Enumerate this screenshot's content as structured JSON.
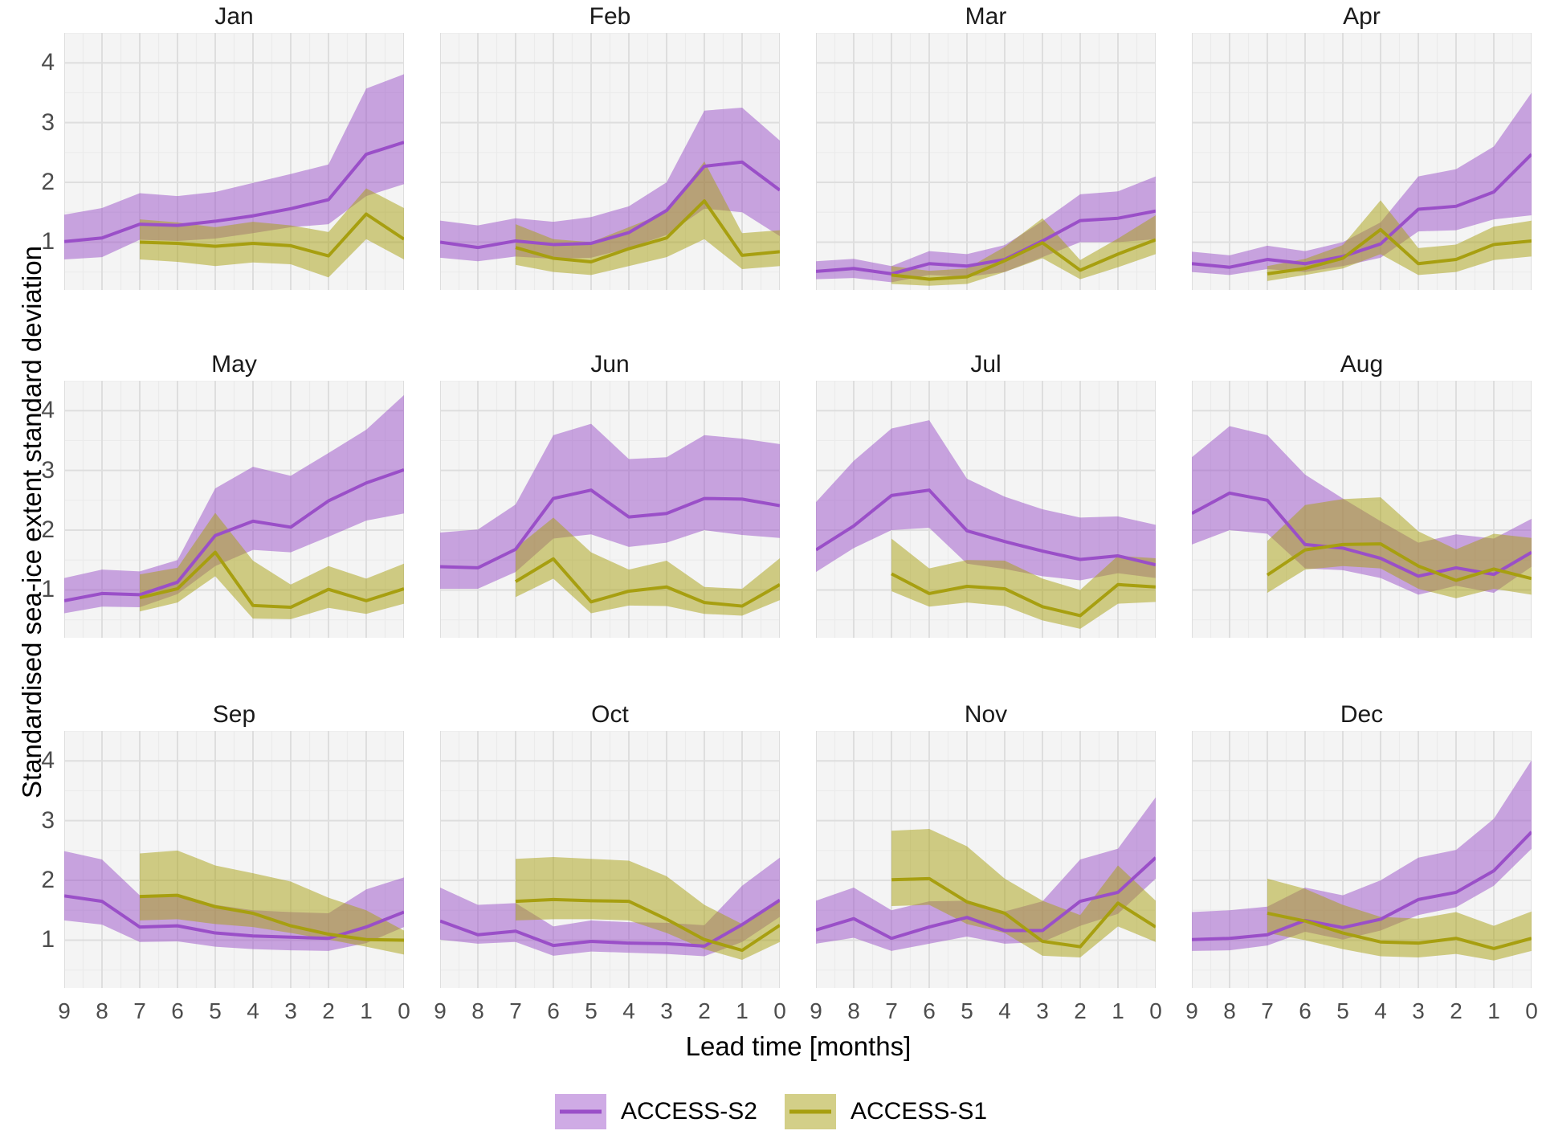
{
  "figure": {
    "y_axis_title": "Standardised sea-ice extent standard deviation",
    "x_axis_title": "Lead time [months]",
    "y_ticks": [
      "4",
      "3",
      "2",
      "1"
    ],
    "x_ticks": [
      "9",
      "8",
      "7",
      "6",
      "5",
      "4",
      "3",
      "2",
      "1",
      "0"
    ]
  },
  "legend": {
    "items": [
      {
        "label": "ACCESS-S2",
        "line_color": "#9a4fc8",
        "fill_color": "#cfabe5"
      },
      {
        "label": "ACCESS-S1",
        "line_color": "#a79f10",
        "fill_color": "#d3cf88"
      }
    ]
  },
  "colors": {
    "panel_bg": "#f4f4f4",
    "grid_major": "#dedede",
    "grid_minor": "#ebebeb",
    "s2_line": "#9a4fc8",
    "s2_ribbon": "rgba(154,79,200,0.5)",
    "s1_line": "#a79f10",
    "s1_ribbon": "rgba(167,159,16,0.5)",
    "tick_text": "#4d4d4d"
  },
  "chart_data": {
    "type": "line",
    "title": "",
    "xlabel": "Lead time [months]",
    "ylabel": "Standardised sea-ice extent standard deviation",
    "x": [
      9,
      8,
      7,
      6,
      5,
      4,
      3,
      2,
      1,
      0
    ],
    "x_s1": [
      7,
      6,
      5,
      4,
      3,
      2,
      1,
      0
    ],
    "ylim": [
      0.2,
      4.5
    ],
    "yticks": [
      1,
      2,
      3,
      4
    ],
    "grid": "major+minor",
    "legend_position": "bottom",
    "series_names": [
      "ACCESS-S2",
      "ACCESS-S1"
    ],
    "facets": [
      {
        "title": "Jan",
        "s2": {
          "mean": [
            1.01,
            1.07,
            1.3,
            1.28,
            1.35,
            1.44,
            1.56,
            1.71,
            2.47,
            2.67
          ],
          "lo": [
            0.71,
            0.75,
            1.04,
            1.02,
            1.06,
            1.15,
            1.25,
            1.3,
            1.77,
            1.97
          ],
          "hi": [
            1.46,
            1.57,
            1.82,
            1.77,
            1.84,
            1.99,
            2.14,
            2.3,
            3.57,
            3.81
          ]
        },
        "s1": {
          "mean": [
            1.0,
            0.98,
            0.93,
            0.98,
            0.94,
            0.77,
            1.47,
            1.05
          ],
          "lo": [
            0.71,
            0.67,
            0.6,
            0.66,
            0.63,
            0.41,
            1.05,
            0.71
          ],
          "hi": [
            1.38,
            1.33,
            1.25,
            1.34,
            1.28,
            1.17,
            1.9,
            1.57
          ]
        }
      },
      {
        "title": "Feb",
        "s2": {
          "mean": [
            1.0,
            0.91,
            1.02,
            0.96,
            0.98,
            1.16,
            1.53,
            2.27,
            2.34,
            1.87
          ],
          "lo": [
            0.74,
            0.68,
            0.76,
            0.72,
            0.74,
            0.9,
            1.12,
            1.56,
            1.5,
            1.1
          ],
          "hi": [
            1.36,
            1.28,
            1.4,
            1.34,
            1.42,
            1.6,
            2.0,
            3.2,
            3.25,
            2.7
          ]
        },
        "s1": {
          "mean": [
            0.91,
            0.73,
            0.67,
            0.89,
            1.07,
            1.69,
            0.78,
            0.84
          ],
          "lo": [
            0.62,
            0.5,
            0.45,
            0.6,
            0.75,
            1.05,
            0.55,
            0.6
          ],
          "hi": [
            1.3,
            1.05,
            1.0,
            1.25,
            1.5,
            2.35,
            1.15,
            1.2
          ]
        }
      },
      {
        "title": "Mar",
        "s2": {
          "mean": [
            0.51,
            0.56,
            0.47,
            0.64,
            0.6,
            0.71,
            1.02,
            1.36,
            1.4,
            1.52
          ],
          "lo": [
            0.38,
            0.4,
            0.33,
            0.45,
            0.42,
            0.5,
            0.75,
            1.0,
            1.0,
            1.05
          ],
          "hi": [
            0.68,
            0.72,
            0.6,
            0.85,
            0.8,
            0.95,
            1.35,
            1.8,
            1.85,
            2.1
          ]
        },
        "s1": {
          "mean": [
            0.45,
            0.38,
            0.42,
            0.69,
            0.99,
            0.53,
            0.8,
            1.04
          ],
          "lo": [
            0.3,
            0.27,
            0.3,
            0.5,
            0.73,
            0.38,
            0.58,
            0.8
          ],
          "hi": [
            0.6,
            0.52,
            0.56,
            0.92,
            1.4,
            0.7,
            1.06,
            1.45
          ]
        }
      },
      {
        "title": "Apr",
        "s2": {
          "mean": [
            0.64,
            0.58,
            0.71,
            0.64,
            0.76,
            0.97,
            1.55,
            1.6,
            1.84,
            2.47
          ],
          "lo": [
            0.5,
            0.45,
            0.55,
            0.5,
            0.6,
            0.74,
            1.18,
            1.2,
            1.38,
            1.45
          ],
          "hi": [
            0.84,
            0.78,
            0.94,
            0.85,
            1.0,
            1.33,
            2.1,
            2.22,
            2.6,
            3.5
          ]
        },
        "s1": {
          "mean": [
            0.47,
            0.56,
            0.73,
            1.21,
            0.64,
            0.71,
            0.96,
            1.02
          ],
          "lo": [
            0.35,
            0.45,
            0.56,
            0.8,
            0.45,
            0.5,
            0.7,
            0.76
          ],
          "hi": [
            0.6,
            0.72,
            0.95,
            1.7,
            0.9,
            0.96,
            1.26,
            1.36
          ]
        }
      },
      {
        "title": "May",
        "s2": {
          "mean": [
            0.82,
            0.94,
            0.92,
            1.13,
            1.91,
            2.15,
            2.05,
            2.49,
            2.79,
            3.01
          ],
          "lo": [
            0.61,
            0.72,
            0.71,
            0.93,
            1.4,
            1.67,
            1.63,
            1.89,
            2.16,
            2.28
          ],
          "hi": [
            1.2,
            1.34,
            1.31,
            1.5,
            2.7,
            3.06,
            2.91,
            3.29,
            3.68,
            4.26
          ]
        },
        "s1": {
          "mean": [
            0.87,
            1.02,
            1.63,
            0.74,
            0.71,
            1.01,
            0.82,
            1.02
          ],
          "lo": [
            0.64,
            0.79,
            1.23,
            0.52,
            0.51,
            0.7,
            0.6,
            0.77
          ],
          "hi": [
            1.26,
            1.37,
            2.29,
            1.49,
            1.09,
            1.4,
            1.19,
            1.44
          ]
        }
      },
      {
        "title": "Jun",
        "s2": {
          "mean": [
            1.39,
            1.37,
            1.68,
            2.53,
            2.67,
            2.22,
            2.28,
            2.53,
            2.52,
            2.41
          ],
          "lo": [
            1.02,
            1.02,
            1.3,
            1.86,
            1.93,
            1.72,
            1.79,
            2.0,
            1.92,
            1.87
          ],
          "hi": [
            1.96,
            2.01,
            2.43,
            3.59,
            3.78,
            3.19,
            3.22,
            3.59,
            3.53,
            3.44
          ]
        },
        "s1": {
          "mean": [
            1.14,
            1.52,
            0.8,
            0.98,
            1.05,
            0.79,
            0.73,
            1.09
          ],
          "lo": [
            0.88,
            1.19,
            0.61,
            0.74,
            0.73,
            0.6,
            0.57,
            0.83
          ],
          "hi": [
            1.7,
            2.21,
            1.63,
            1.34,
            1.49,
            1.05,
            1.02,
            1.53
          ]
        }
      },
      {
        "title": "Jul",
        "s2": {
          "mean": [
            1.67,
            2.07,
            2.58,
            2.67,
            1.99,
            1.81,
            1.65,
            1.51,
            1.57,
            1.42
          ],
          "lo": [
            1.3,
            1.7,
            2.0,
            2.04,
            1.44,
            1.35,
            1.23,
            1.16,
            1.28,
            1.2
          ],
          "hi": [
            2.47,
            3.16,
            3.7,
            3.84,
            2.86,
            2.56,
            2.35,
            2.21,
            2.23,
            2.09
          ]
        },
        "s1": {
          "mean": [
            1.27,
            0.94,
            1.06,
            1.02,
            0.72,
            0.57,
            1.09,
            1.05
          ],
          "lo": [
            0.98,
            0.72,
            0.79,
            0.73,
            0.49,
            0.35,
            0.77,
            0.8
          ],
          "hi": [
            1.86,
            1.36,
            1.5,
            1.49,
            1.19,
            1.0,
            1.57,
            1.53
          ]
        }
      },
      {
        "title": "Aug",
        "s2": {
          "mean": [
            2.28,
            2.62,
            2.5,
            1.76,
            1.7,
            1.53,
            1.23,
            1.37,
            1.26,
            1.63
          ],
          "lo": [
            1.76,
            2.0,
            1.94,
            1.36,
            1.33,
            1.2,
            0.92,
            1.07,
            0.95,
            1.39
          ],
          "hi": [
            3.22,
            3.74,
            3.59,
            2.93,
            2.53,
            2.15,
            1.79,
            1.93,
            1.86,
            2.19
          ]
        },
        "s1": {
          "mean": [
            1.25,
            1.67,
            1.76,
            1.77,
            1.4,
            1.16,
            1.35,
            1.19
          ],
          "lo": [
            0.95,
            1.34,
            1.4,
            1.36,
            1.02,
            0.86,
            1.02,
            0.92
          ],
          "hi": [
            1.82,
            2.42,
            2.52,
            2.55,
            1.98,
            1.68,
            1.94,
            1.87
          ]
        }
      },
      {
        "title": "Sep",
        "s2": {
          "mean": [
            1.74,
            1.65,
            1.22,
            1.24,
            1.12,
            1.07,
            1.05,
            1.03,
            1.22,
            1.47
          ],
          "lo": [
            1.33,
            1.26,
            0.97,
            0.98,
            0.89,
            0.85,
            0.83,
            0.82,
            0.95,
            1.22
          ],
          "hi": [
            2.49,
            2.35,
            1.75,
            1.77,
            1.59,
            1.5,
            1.47,
            1.45,
            1.85,
            2.05
          ]
        },
        "s1": {
          "mean": [
            1.73,
            1.75,
            1.56,
            1.45,
            1.24,
            1.1,
            1.01,
            1.0
          ],
          "lo": [
            1.33,
            1.35,
            1.27,
            1.22,
            1.12,
            1.01,
            0.89,
            0.76
          ],
          "hi": [
            2.45,
            2.5,
            2.25,
            2.12,
            1.98,
            1.71,
            1.5,
            1.16
          ]
        }
      },
      {
        "title": "Oct",
        "s2": {
          "mean": [
            1.32,
            1.09,
            1.15,
            0.91,
            0.98,
            0.95,
            0.94,
            0.9,
            1.26,
            1.67
          ],
          "lo": [
            1.01,
            0.94,
            0.97,
            0.74,
            0.81,
            0.79,
            0.77,
            0.73,
            0.97,
            1.39
          ],
          "hi": [
            1.88,
            1.59,
            1.62,
            1.23,
            1.33,
            1.3,
            1.29,
            1.25,
            1.91,
            2.38
          ]
        },
        "s1": {
          "mean": [
            1.65,
            1.68,
            1.66,
            1.65,
            1.35,
            1.01,
            0.83,
            1.25
          ],
          "lo": [
            1.33,
            1.35,
            1.35,
            1.33,
            1.12,
            0.85,
            0.67,
            0.97
          ],
          "hi": [
            2.36,
            2.39,
            2.36,
            2.33,
            2.07,
            1.59,
            1.27,
            1.67
          ]
        }
      },
      {
        "title": "Nov",
        "s2": {
          "mean": [
            1.17,
            1.36,
            1.03,
            1.22,
            1.38,
            1.16,
            1.16,
            1.65,
            1.8,
            2.38
          ],
          "lo": [
            0.94,
            1.04,
            0.82,
            0.94,
            1.06,
            0.94,
            0.97,
            1.24,
            1.44,
            2.03
          ],
          "hi": [
            1.66,
            1.88,
            1.5,
            1.65,
            1.66,
            1.48,
            1.65,
            2.35,
            2.53,
            3.39
          ]
        },
        "s1": {
          "mean": [
            2.01,
            2.03,
            1.64,
            1.45,
            0.98,
            0.89,
            1.62,
            1.22
          ],
          "lo": [
            1.57,
            1.59,
            1.27,
            1.12,
            0.74,
            0.71,
            1.23,
            0.97
          ],
          "hi": [
            2.83,
            2.86,
            2.57,
            2.03,
            1.66,
            1.42,
            2.25,
            1.66
          ]
        }
      },
      {
        "title": "Dec",
        "s2": {
          "mean": [
            1.01,
            1.03,
            1.09,
            1.33,
            1.21,
            1.35,
            1.68,
            1.8,
            2.16,
            2.81
          ],
          "lo": [
            0.82,
            0.83,
            0.91,
            1.14,
            1.01,
            1.16,
            1.42,
            1.55,
            1.91,
            2.53
          ],
          "hi": [
            1.47,
            1.5,
            1.56,
            1.88,
            1.75,
            2.0,
            2.38,
            2.51,
            3.03,
            4.01
          ]
        },
        "s1": {
          "mean": [
            1.45,
            1.32,
            1.12,
            0.97,
            0.95,
            1.03,
            0.86,
            1.03
          ],
          "lo": [
            1.12,
            1.0,
            0.85,
            0.73,
            0.71,
            0.77,
            0.66,
            0.82
          ],
          "hi": [
            2.03,
            1.86,
            1.59,
            1.39,
            1.36,
            1.47,
            1.24,
            1.48
          ]
        }
      }
    ]
  }
}
